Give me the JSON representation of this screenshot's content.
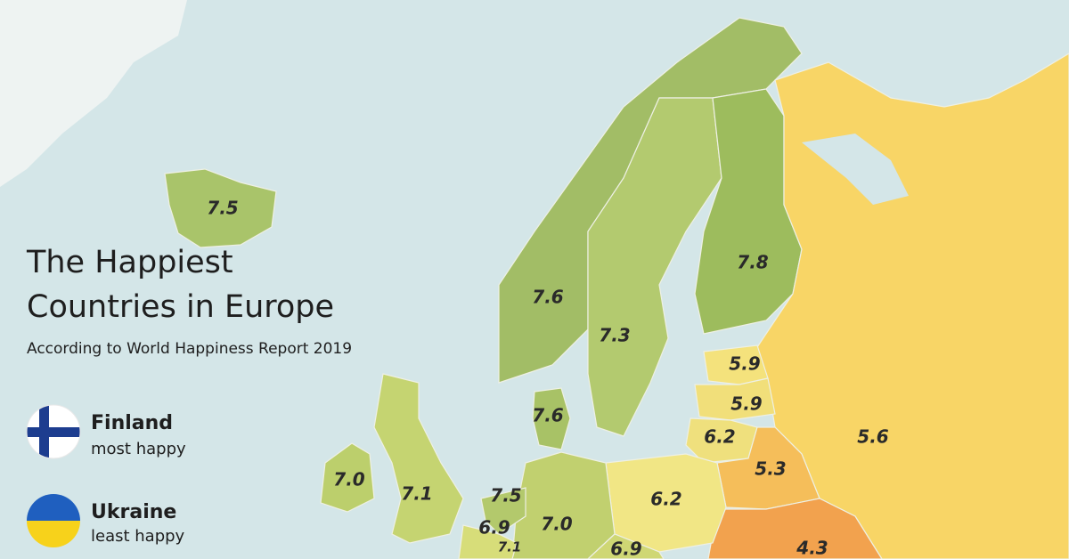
{
  "header": {
    "title_line1": "The Happiest",
    "title_line2": "Countries in Europe",
    "subtitle": "According to World Happiness Report 2019"
  },
  "legend": [
    {
      "country": "Finland",
      "note": "most happy"
    },
    {
      "country": "Ukraine",
      "note": "least happy"
    }
  ],
  "scores": [
    "7.5",
    "7.6",
    "7.3",
    "7.8",
    "5.9",
    "5.9",
    "6.2",
    "7.6",
    "5.6",
    "5.3",
    "6.2",
    "7.0",
    "7.1",
    "7.5",
    "6.9",
    "7.1",
    "7.0",
    "6.9",
    "4.3"
  ]
}
